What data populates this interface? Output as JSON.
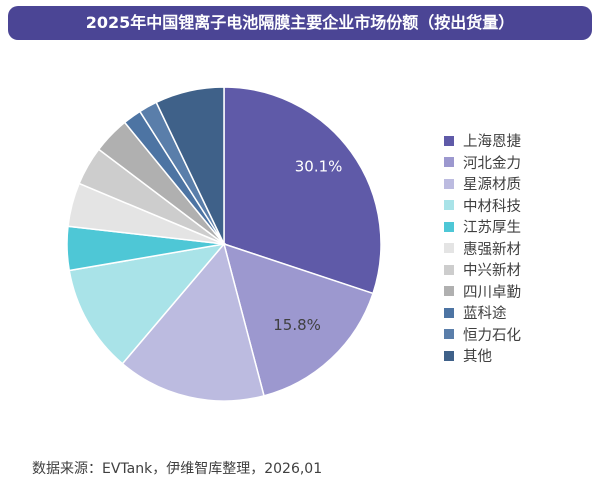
{
  "title": "2025年中国锂离子电池隔膜主要企业市场份额（按出货量）",
  "chart_data": {
    "type": "pie",
    "title": "2025年中国锂离子电池隔膜主要企业市场份额（按出货量）",
    "legend_position": "right",
    "categories": [
      "上海恩捷",
      "河北金力",
      "星源材质",
      "中材科技",
      "江苏厚生",
      "惠强新材",
      "中兴新材",
      "四川卓勤",
      "蓝科途",
      "恒力石化",
      "其他"
    ],
    "values": [
      30.1,
      15.8,
      15.3,
      11.1,
      4.5,
      4.5,
      4.0,
      3.8,
      1.9,
      1.9,
      7.1
    ],
    "data_labels": [
      "30.1%",
      "15.8%",
      "",
      "",
      "",
      "",
      "",
      "",
      "",
      "",
      ""
    ],
    "colors": [
      "#5f5aa8",
      "#9c98cf",
      "#bcbbe0",
      "#a9e3e8",
      "#4ec7d6",
      "#e4e4e4",
      "#cdcdcd",
      "#b0b0b0",
      "#4d74a3",
      "#5a7eaa",
      "#3f6189"
    ]
  },
  "source": "数据来源：EVTank，伊维智库整理，2026,01"
}
